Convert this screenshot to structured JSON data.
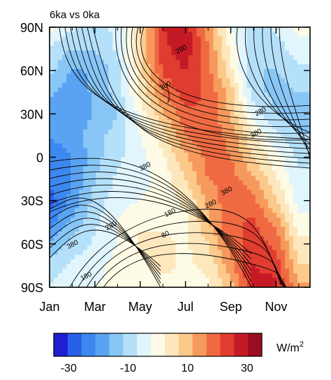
{
  "chart_data": {
    "type": "heatmap",
    "title": "6ka vs 0ka",
    "x_tick_labels": [
      "Jan",
      "Mar",
      "May",
      "Jul",
      "Sep",
      "Nov"
    ],
    "x_tick_months": [
      1,
      3,
      5,
      7,
      9,
      11
    ],
    "xlim": [
      1,
      12.5
    ],
    "y_tick_labels": [
      "90N",
      "60N",
      "30N",
      "0",
      "30S",
      "60S",
      "90S"
    ],
    "y_tick_values": [
      90,
      60,
      30,
      0,
      -30,
      -60,
      -90
    ],
    "ylim": [
      -90,
      90
    ],
    "grid": false,
    "colorbar": {
      "unit": "W/m",
      "unit_superscript": "2",
      "tick_labels": [
        "-30",
        "-10",
        "10",
        "30"
      ],
      "tick_values": [
        -30,
        -10,
        10,
        30
      ],
      "levels": [
        -35,
        -30,
        -25,
        -20,
        -15,
        -10,
        -5,
        0,
        5,
        10,
        15,
        20,
        25,
        30,
        35
      ],
      "colors": [
        "#1f1fd1",
        "#2a5fe8",
        "#3c88f0",
        "#5aa3f2",
        "#88c6f6",
        "#b5e0fa",
        "#e1f5fc",
        "#fdfbe6",
        "#fde7bd",
        "#fbc98a",
        "#f6995c",
        "#ef6a42",
        "#e03c30",
        "#c51a26",
        "#9a0d1e"
      ]
    },
    "shading_grid": {
      "months": [
        1,
        2,
        3,
        4,
        5,
        6,
        7,
        8,
        9,
        10,
        11,
        12
      ],
      "latitudes": [
        90,
        75,
        60,
        45,
        30,
        15,
        0,
        -15,
        -30,
        -45,
        -60,
        -75,
        -90
      ],
      "values": [
        [
          2,
          -4,
          -6,
          -4,
          8,
          30,
          33,
          18,
          0,
          -8,
          -4,
          2
        ],
        [
          -6,
          -10,
          -10,
          -4,
          10,
          28,
          34,
          20,
          4,
          -10,
          -8,
          -2
        ],
        [
          -8,
          -16,
          -14,
          -8,
          8,
          26,
          30,
          22,
          6,
          -10,
          -10,
          -6
        ],
        [
          -14,
          -18,
          -14,
          -8,
          6,
          20,
          28,
          24,
          12,
          -8,
          -12,
          -10
        ],
        [
          -16,
          -20,
          -14,
          -10,
          2,
          14,
          24,
          24,
          14,
          -2,
          -10,
          -12
        ],
        [
          -20,
          -18,
          -12,
          -8,
          0,
          8,
          20,
          24,
          18,
          6,
          -4,
          -10
        ],
        [
          -22,
          -20,
          -12,
          -6,
          -2,
          4,
          14,
          22,
          20,
          10,
          2,
          -6
        ],
        [
          -24,
          -20,
          -10,
          -4,
          -2,
          2,
          10,
          20,
          22,
          16,
          6,
          -4
        ],
        [
          -28,
          -18,
          -8,
          -2,
          0,
          2,
          6,
          16,
          24,
          22,
          10,
          -2
        ],
        [
          -22,
          -14,
          -6,
          0,
          4,
          4,
          4,
          14,
          24,
          26,
          18,
          2
        ],
        [
          -14,
          -8,
          -4,
          0,
          6,
          6,
          4,
          10,
          22,
          28,
          24,
          6
        ],
        [
          -8,
          -4,
          -2,
          2,
          4,
          6,
          4,
          6,
          18,
          30,
          28,
          10
        ],
        [
          -4,
          -2,
          0,
          2,
          4,
          4,
          4,
          4,
          12,
          32,
          32,
          16
        ]
      ]
    },
    "contour_labels": [
      {
        "text": "280",
        "month": 6.8,
        "lat": 75
      },
      {
        "text": "380",
        "month": 6.1,
        "lat": 50
      },
      {
        "text": "280",
        "month": 10.3,
        "lat": 32
      },
      {
        "text": "380",
        "month": 10.1,
        "lat": 17
      },
      {
        "text": "380",
        "month": 5.2,
        "lat": -6
      },
      {
        "text": "380",
        "month": 8.8,
        "lat": -23
      },
      {
        "text": "280",
        "month": 8.1,
        "lat": -32
      },
      {
        "text": "180",
        "month": 6.3,
        "lat": -38
      },
      {
        "text": "280",
        "month": 3.7,
        "lat": -47
      },
      {
        "text": "80",
        "month": 6.1,
        "lat": -53
      },
      {
        "text": "380",
        "month": 2.0,
        "lat": -60
      },
      {
        "text": "180",
        "month": 2.6,
        "lat": -82
      }
    ]
  }
}
